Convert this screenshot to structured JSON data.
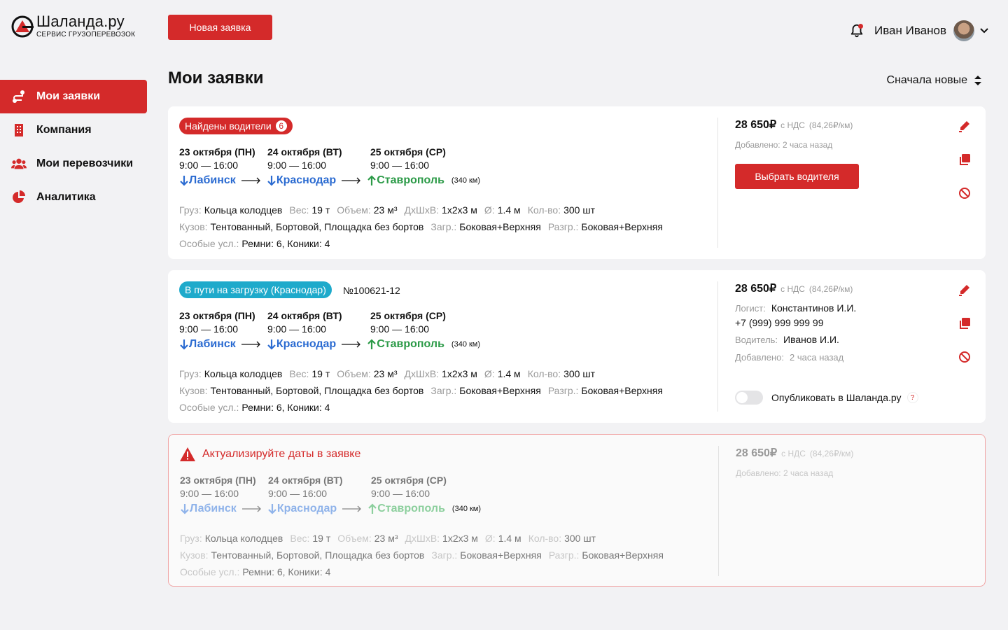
{
  "brand": {
    "title": "Шаланда.ру",
    "subtitle": "СЕРВИС ГРУЗОПЕРЕВОЗОК",
    "accent": "#d42a2a"
  },
  "header": {
    "new_request_label": "Новая заявка",
    "user_name": "Иван Иванов"
  },
  "sidebar": {
    "items": [
      {
        "label": "Мои заявки",
        "icon": "route-icon",
        "active": true
      },
      {
        "label": "Компания",
        "icon": "building-icon",
        "active": false
      },
      {
        "label": "Мои перевозчики",
        "icon": "users-icon",
        "active": false
      },
      {
        "label": "Аналитика",
        "icon": "pie-chart-icon",
        "active": false
      }
    ]
  },
  "page": {
    "title": "Мои заявки",
    "sort_label": "Сначала новые"
  },
  "labels": {
    "cargo": "Груз:",
    "weight": "Вес:",
    "volume": "Объем:",
    "dims": "ДхШхВ:",
    "diameter": "Ø:",
    "qty": "Кол-во:",
    "body": "Кузов:",
    "load": "Загр.:",
    "unload": "Разгр.:",
    "special": "Особые усл.:",
    "nds": "с НДС",
    "added": "Добавлено:",
    "logist": "Логист:",
    "driver": "Водитель:"
  },
  "orders": [
    {
      "badge": "Найдены водители",
      "badge_count": "6",
      "dates": [
        {
          "date": "23 октября (ПН)",
          "time": "9:00 — 16:00"
        },
        {
          "date": "24 октября (ВТ)",
          "time": "9:00 — 16:00"
        },
        {
          "date": "25 октября (СР)",
          "time": "9:00 — 16:00"
        }
      ],
      "route": {
        "from": "Лабинск",
        "via": "Краснодар",
        "to": "Ставрополь",
        "distance": "(340 км)"
      },
      "cargo": "Кольца колодцев",
      "weight": "19 т",
      "volume": "23 м³",
      "dims": "1х2х3 м",
      "diameter": "1.4 м",
      "qty": "300 шт",
      "body": "Тентованный, Бортовой, Площадка без бортов",
      "load": "Боковая+Верхняя",
      "unload": "Боковая+Верхняя",
      "special": "Ремни: 6, Коники: 4",
      "price": "28 650₽",
      "per_km": "(84,26₽/км)",
      "added": "2 часа назад",
      "choose_label": "Выбрать водителя"
    },
    {
      "badge": "В пути на загрузку (Краснодар)",
      "number": "№100621-12",
      "dates": [
        {
          "date": "23 октября (ПН)",
          "time": "9:00 — 16:00"
        },
        {
          "date": "24 октября (ВТ)",
          "time": "9:00 — 16:00"
        },
        {
          "date": "25 октября (СР)",
          "time": "9:00 — 16:00"
        }
      ],
      "route": {
        "from": "Лабинск",
        "via": "Краснодар",
        "to": "Ставрополь",
        "distance": "(340 км)"
      },
      "cargo": "Кольца колодцев",
      "weight": "19 т",
      "volume": "23 м³",
      "dims": "1х2х3 м",
      "diameter": "1.4 м",
      "qty": "300 шт",
      "body": "Тентованный, Бортовой, Площадка без бортов",
      "load": "Боковая+Верхняя",
      "unload": "Боковая+Верхняя",
      "special": "Ремни: 6, Коники: 4",
      "price": "28 650₽",
      "per_km": "(84,26₽/км)",
      "logist": "Константинов И.И.",
      "phone": "+7 (999) 999 999 99",
      "driver": "Иванов И.И.",
      "added": "2 часа назад",
      "publish_label": "Опубликовать в Шаланда.ру",
      "publish_help": "?",
      "publish_on": false
    },
    {
      "warning": "Актуализируйте даты в заявке",
      "dates": [
        {
          "date": "23 октября (ПН)",
          "time": "9:00 — 16:00"
        },
        {
          "date": "24 октября (ВТ)",
          "time": "9:00 — 16:00"
        },
        {
          "date": "25 октября (СР)",
          "time": "9:00 — 16:00"
        }
      ],
      "route": {
        "from": "Лабинск",
        "via": "Краснодар",
        "to": "Ставрополь",
        "distance": "(340 км)"
      },
      "cargo": "Кольца колодцев",
      "weight": "19 т",
      "volume": "23 м³",
      "dims": "1х2х3 м",
      "diameter": "1.4 м",
      "qty": "300 шт",
      "body": "Тентованный, Бортовой, Площадка без бортов",
      "load": "Боковая+Верхняя",
      "unload": "Боковая+Верхняя",
      "special": "Ремни: 6, Коники: 4",
      "price": "28 650₽",
      "per_km": "(84,26₽/км)",
      "added": "2 часа назад"
    }
  ]
}
